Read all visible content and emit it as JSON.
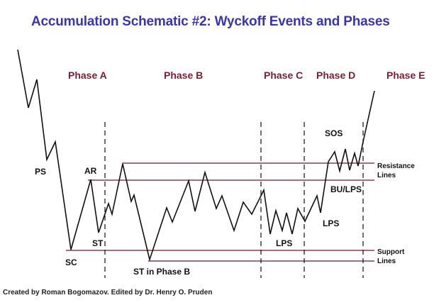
{
  "title": "Accumulation Schematic #2: Wyckoff Events and Phases",
  "phases": [
    "Phase A",
    "Phase B",
    "Phase C",
    "Phase D",
    "Phase E"
  ],
  "events": {
    "ps": "PS",
    "sc": "SC",
    "ar": "AR",
    "st": "ST",
    "st_phase_b": "ST in Phase B",
    "lps_c": "LPS",
    "lps_d": "LPS",
    "sos": "SOS",
    "bu_lps": "BU/LPS"
  },
  "lines": {
    "resistance_line1": "Resistance",
    "resistance_line2": "Lines",
    "support_line1": "Support",
    "support_line2": "Lines"
  },
  "credit": "Created by Roman Bogomazov. Edited by Dr. Henry O. Pruden",
  "colors": {
    "title": "#3a36a8",
    "phase": "#7a1f33",
    "price": "#111111",
    "level_line": "#6b1a2a"
  }
}
